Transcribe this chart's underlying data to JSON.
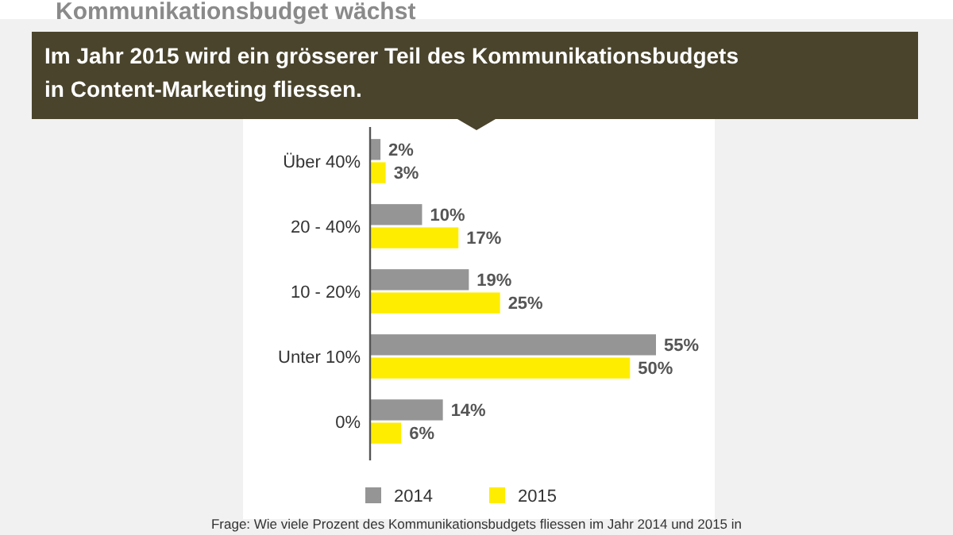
{
  "chart_data": {
    "type": "bar",
    "orientation": "horizontal",
    "title": "Kommunikationsbudget wächst",
    "subtitle": "Im Jahr 2015 wird ein grösserer Teil des Kommunikationsbudgets in Content-Marketing fliessen.",
    "categories": [
      "Über 40%",
      "20 - 40%",
      "10 - 20%",
      "Unter 10%",
      "0%"
    ],
    "series": [
      {
        "name": "2014",
        "color": "#959595",
        "values": [
          2,
          10,
          19,
          55,
          14
        ],
        "value_labels": [
          "2%",
          "10%",
          "19%",
          "55%",
          "14%"
        ]
      },
      {
        "name": "2015",
        "color": "#ffed00",
        "values": [
          3,
          17,
          25,
          50,
          6
        ],
        "value_labels": [
          "3%",
          "17%",
          "25%",
          "50%",
          "6%"
        ]
      }
    ],
    "legend": "bottom",
    "annotations": [
      "Frage: Wie viele Prozent des Kommunikationsbudgets fliessen im Jahr 2014 und 2015 in"
    ]
  }
}
